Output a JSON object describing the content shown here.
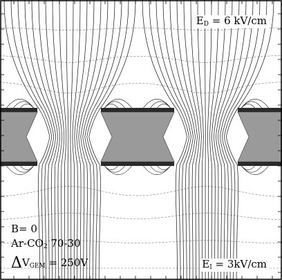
{
  "annotations": {
    "drift_field": {
      "symbol": "E",
      "sub": "D",
      "value": " = 6 kV/cm"
    },
    "induction_field": {
      "symbol": "E",
      "sub": "I",
      "value": " = 3kV/cm"
    },
    "magnetic_field": "B= 0",
    "gas": {
      "prefix": "Ar-CO",
      "sub": "2",
      "suffix": " 70-30"
    },
    "gem_voltage": {
      "delta": "Δ",
      "symbol": "V",
      "sub": "GEM",
      "value": " = 250V"
    }
  },
  "colors": {
    "background": "#ffffff",
    "field_line": "#111111",
    "equipotential": "#777777",
    "kapton": "#9a9a9a",
    "copper": "#2a2a2a",
    "frame": "#000000"
  },
  "icons": [
    "gem-foil-cross-section"
  ]
}
